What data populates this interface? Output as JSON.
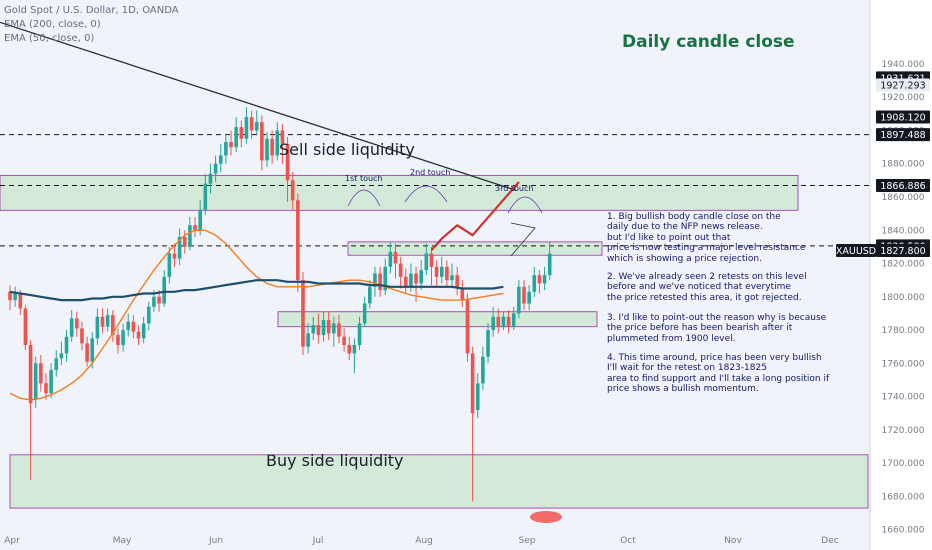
{
  "legend": {
    "symbol": "Gold Spot / U.S. Dollar, 1D, OANDA",
    "ema200": "EMA (200, close, 0)",
    "ema50": "EMA (50, close, 0)"
  },
  "chart_title": "Daily candle close",
  "zones": {
    "sell": "Sell side liquidity",
    "buy": "Buy side liquidity",
    "touch1": "1st touch",
    "touch2": "2nd touch",
    "touch3": "3rd touch"
  },
  "notes": {
    "n1": "1. Big bullish body candle close on the\ndaily due to the NFP news release.\nbut I'd like to point out that\nprice is now testing a major level resistance\nwhich is showing a price rejection.",
    "n2": "2. We've already seen 2 retests on this level\nbefore and we've noticed that everytime\nthe price retested this area, it got rejected.",
    "n3": "3. I'd like to point-out the reason why is because\nthe price before has been bearish after it\nplummeted from 1900 level.",
    "n4": "4. This time around, price has been very bullish\nI'll wait for the retest on 1823-1825\narea to find support and I'll take a long position if\nprice shows a bullish momentum."
  },
  "colors": {
    "bull": "#26a69a",
    "bear": "#ef5350",
    "ema200": "#1e4f6e",
    "ema50": "#f57c1f",
    "zone_fill": "#d4ead8",
    "zone_border": "#9c27b0",
    "projection": "#d32f2f",
    "trendline": "#2a2e39",
    "price_tag": "#131722",
    "title_green": "#17733f"
  },
  "chart_data": {
    "type": "candlestick",
    "symbol": "XAUUSD",
    "timeframe": "1D",
    "ylim": [
      1655,
      1970
    ],
    "yticks": [
      1660,
      1680,
      1700,
      1720,
      1740,
      1760,
      1780,
      1800,
      1820,
      1840,
      1860,
      1880,
      1900,
      1920,
      1940
    ],
    "x_labels": [
      "Apr",
      "May",
      "Jun",
      "Jul",
      "Aug",
      "Sep",
      "Oct",
      "Nov",
      "Dec"
    ],
    "price_tags": [
      {
        "label": "1931.621",
        "value": 1931.6,
        "dark": true
      },
      {
        "label": "1927.293",
        "value": 1927.3,
        "dark": false
      },
      {
        "label": "1908.120",
        "value": 1908.1,
        "dark": true
      },
      {
        "label": "1897.488",
        "value": 1897.5,
        "dark": true
      },
      {
        "label": "1866.886",
        "value": 1866.9,
        "dark": true
      },
      {
        "label": "1830.590",
        "value": 1830.6,
        "dark": true
      },
      {
        "label": "XAUUSD",
        "value": 1827.8,
        "dark": true,
        "symbol": true
      },
      {
        "label": "1827.800",
        "value": 1827.8,
        "dark": true
      }
    ],
    "dashed_levels": [
      1897.5,
      1866.9,
      1830.6
    ],
    "zones": [
      {
        "name": "Sell side liquidity",
        "from": 1852,
        "to": 1873
      },
      {
        "name": "Buy side liquidity",
        "from": 1673,
        "to": 1705
      },
      {
        "name": "resistance",
        "from": 1825,
        "to": 1833
      },
      {
        "name": "support",
        "from": 1782,
        "to": 1791
      }
    ],
    "candles": [
      [
        1803,
        1798,
        1807,
        1792
      ],
      [
        1798,
        1802,
        1806,
        1794
      ],
      [
        1802,
        1793,
        1804,
        1789
      ],
      [
        1793,
        1771,
        1795,
        1768
      ],
      [
        1771,
        1736,
        1774,
        1690
      ],
      [
        1738,
        1760,
        1764,
        1733
      ],
      [
        1760,
        1748,
        1765,
        1743
      ],
      [
        1748,
        1742,
        1754,
        1738
      ],
      [
        1742,
        1756,
        1760,
        1739
      ],
      [
        1756,
        1763,
        1768,
        1752
      ],
      [
        1763,
        1766,
        1773,
        1759
      ],
      [
        1766,
        1776,
        1780,
        1761
      ],
      [
        1776,
        1787,
        1792,
        1773
      ],
      [
        1787,
        1781,
        1791,
        1776
      ],
      [
        1781,
        1772,
        1785,
        1768
      ],
      [
        1772,
        1761,
        1776,
        1758
      ],
      [
        1761,
        1775,
        1779,
        1757
      ],
      [
        1775,
        1788,
        1793,
        1771
      ],
      [
        1788,
        1782,
        1793,
        1778
      ],
      [
        1782,
        1789,
        1793,
        1779
      ],
      [
        1789,
        1777,
        1792,
        1773
      ],
      [
        1777,
        1771,
        1781,
        1766
      ],
      [
        1771,
        1780,
        1784,
        1767
      ],
      [
        1780,
        1785,
        1790,
        1776
      ],
      [
        1785,
        1779,
        1789,
        1775
      ],
      [
        1779,
        1775,
        1783,
        1771
      ],
      [
        1775,
        1784,
        1788,
        1772
      ],
      [
        1784,
        1794,
        1797,
        1780
      ],
      [
        1794,
        1800,
        1804,
        1791
      ],
      [
        1800,
        1796,
        1804,
        1791
      ],
      [
        1796,
        1812,
        1816,
        1794
      ],
      [
        1812,
        1826,
        1830,
        1808
      ],
      [
        1826,
        1823,
        1832,
        1818
      ],
      [
        1823,
        1836,
        1841,
        1819
      ],
      [
        1836,
        1830,
        1840,
        1826
      ],
      [
        1830,
        1843,
        1848,
        1828
      ],
      [
        1843,
        1840,
        1848,
        1836
      ],
      [
        1840,
        1852,
        1858,
        1837
      ],
      [
        1852,
        1868,
        1874,
        1849
      ],
      [
        1868,
        1874,
        1880,
        1862
      ],
      [
        1874,
        1880,
        1885,
        1869
      ],
      [
        1880,
        1885,
        1892,
        1875
      ],
      [
        1885,
        1893,
        1898,
        1880
      ],
      [
        1893,
        1890,
        1900,
        1885
      ],
      [
        1890,
        1902,
        1908,
        1887
      ],
      [
        1902,
        1895,
        1906,
        1890
      ],
      [
        1895,
        1908,
        1914,
        1892
      ],
      [
        1908,
        1900,
        1912,
        1895
      ],
      [
        1900,
        1905,
        1912,
        1897
      ],
      [
        1905,
        1882,
        1909,
        1876
      ],
      [
        1882,
        1895,
        1899,
        1878
      ],
      [
        1895,
        1885,
        1900,
        1880
      ],
      [
        1885,
        1900,
        1905,
        1882
      ],
      [
        1900,
        1892,
        1904,
        1880
      ],
      [
        1892,
        1870,
        1896,
        1857
      ],
      [
        1870,
        1858,
        1875,
        1852
      ],
      [
        1858,
        1810,
        1862,
        1803
      ],
      [
        1810,
        1770,
        1815,
        1765
      ],
      [
        1770,
        1778,
        1784,
        1766
      ],
      [
        1778,
        1783,
        1788,
        1774
      ],
      [
        1783,
        1777,
        1790,
        1772
      ],
      [
        1777,
        1786,
        1791,
        1773
      ],
      [
        1786,
        1778,
        1791,
        1774
      ],
      [
        1778,
        1784,
        1788,
        1770
      ],
      [
        1784,
        1776,
        1789,
        1772
      ],
      [
        1776,
        1771,
        1781,
        1767
      ],
      [
        1771,
        1766,
        1776,
        1762
      ],
      [
        1766,
        1771,
        1775,
        1754
      ],
      [
        1771,
        1784,
        1788,
        1768
      ],
      [
        1784,
        1796,
        1800,
        1782
      ],
      [
        1796,
        1806,
        1810,
        1793
      ],
      [
        1806,
        1814,
        1818,
        1800
      ],
      [
        1814,
        1804,
        1818,
        1800
      ],
      [
        1804,
        1818,
        1823,
        1801
      ],
      [
        1818,
        1827,
        1833,
        1814
      ],
      [
        1827,
        1820,
        1832,
        1811
      ],
      [
        1820,
        1812,
        1824,
        1805
      ],
      [
        1812,
        1806,
        1817,
        1802
      ],
      [
        1806,
        1814,
        1820,
        1803
      ],
      [
        1814,
        1808,
        1818,
        1797
      ],
      [
        1808,
        1816,
        1822,
        1804
      ],
      [
        1816,
        1826,
        1832,
        1813
      ],
      [
        1826,
        1818,
        1830,
        1807
      ],
      [
        1818,
        1812,
        1822,
        1806
      ],
      [
        1812,
        1818,
        1824,
        1808
      ],
      [
        1818,
        1810,
        1822,
        1806
      ],
      [
        1810,
        1813,
        1820,
        1805
      ],
      [
        1813,
        1805,
        1818,
        1801
      ],
      [
        1805,
        1798,
        1810,
        1794
      ],
      [
        1798,
        1766,
        1802,
        1761
      ],
      [
        1766,
        1730,
        1770,
        1677
      ],
      [
        1732,
        1748,
        1754,
        1727
      ],
      [
        1748,
        1764,
        1770,
        1744
      ],
      [
        1764,
        1780,
        1784,
        1760
      ],
      [
        1780,
        1788,
        1794,
        1776
      ],
      [
        1788,
        1782,
        1793,
        1778
      ],
      [
        1782,
        1788,
        1791,
        1780
      ],
      [
        1788,
        1782,
        1792,
        1778
      ],
      [
        1782,
        1790,
        1794,
        1780
      ],
      [
        1790,
        1806,
        1810,
        1787
      ],
      [
        1806,
        1796,
        1810,
        1792
      ],
      [
        1796,
        1803,
        1807,
        1792
      ],
      [
        1803,
        1813,
        1818,
        1800
      ],
      [
        1813,
        1808,
        1816,
        1802
      ],
      [
        1808,
        1813,
        1818,
        1804
      ],
      [
        1813,
        1826,
        1833,
        1810
      ]
    ],
    "ema200": [
      1803,
      1802,
      1801,
      1800,
      1799,
      1798,
      1798,
      1798,
      1799,
      1799,
      1800,
      1800,
      1801,
      1802,
      1802,
      1803,
      1803,
      1804,
      1804,
      1805,
      1806,
      1807,
      1808,
      1809,
      1810,
      1810,
      1810,
      1809,
      1809,
      1809,
      1808,
      1808,
      1808,
      1808,
      1808,
      1807,
      1807,
      1806,
      1806,
      1806,
      1806,
      1806,
      1806,
      1806,
      1805,
      1805,
      1805,
      1805,
      1806
    ],
    "ema50": [
      1742,
      1739,
      1738,
      1739,
      1741,
      1744,
      1748,
      1753,
      1760,
      1769,
      1778,
      1788,
      1798,
      1807,
      1816,
      1824,
      1831,
      1837,
      1840,
      1840,
      1837,
      1832,
      1825,
      1818,
      1812,
      1808,
      1806,
      1806,
      1806,
      1806,
      1807,
      1808,
      1809,
      1810,
      1810,
      1809,
      1807,
      1805,
      1803,
      1801,
      1800,
      1799,
      1798,
      1798,
      1798,
      1799,
      1800,
      1801,
      1802
    ],
    "trendline": [
      [
        0,
        1965
      ],
      [
        79,
        1864
      ]
    ],
    "projection": [
      [
        82,
        1828
      ],
      [
        84,
        1835
      ],
      [
        87,
        1843
      ],
      [
        90,
        1837
      ],
      [
        99,
        1869
      ]
    ]
  }
}
